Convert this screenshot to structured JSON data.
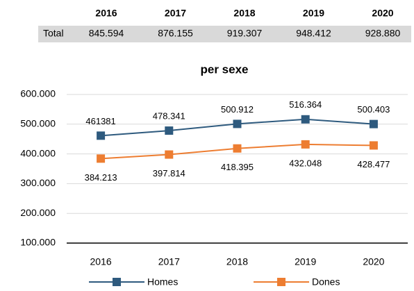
{
  "table": {
    "columns": [
      "2016",
      "2017",
      "2018",
      "2019",
      "2020"
    ],
    "rows": [
      [
        "Total",
        "845.594",
        "876.155",
        "919.307",
        "948.412",
        "928.880"
      ]
    ]
  },
  "chart_data": {
    "type": "line",
    "title": "per sexe",
    "categories": [
      "2016",
      "2017",
      "2018",
      "2019",
      "2020"
    ],
    "series": [
      {
        "name": "Homes",
        "color": "#2e5a7e",
        "values": [
          461381,
          478341,
          500912,
          516364,
          500403
        ],
        "value_labels": [
          "461381",
          "478.341",
          "500.912",
          "516.364",
          "500.403"
        ]
      },
      {
        "name": "Dones",
        "color": "#ed7d31",
        "values": [
          384213,
          397814,
          418395,
          432048,
          428477
        ],
        "value_labels": [
          "384.213",
          "397.814",
          "418.395",
          "432.048",
          "428.477"
        ]
      }
    ],
    "ylim": [
      100000,
      600000
    ],
    "yticks": [
      {
        "value": 100000,
        "label": "100.000"
      },
      {
        "value": 200000,
        "label": "200.000"
      },
      {
        "value": 300000,
        "label": "300.000"
      },
      {
        "value": 400000,
        "label": "400.000"
      },
      {
        "value": 500000,
        "label": "500.000"
      },
      {
        "value": 600000,
        "label": "600.000"
      }
    ],
    "grid": true,
    "legend": "bottom"
  }
}
